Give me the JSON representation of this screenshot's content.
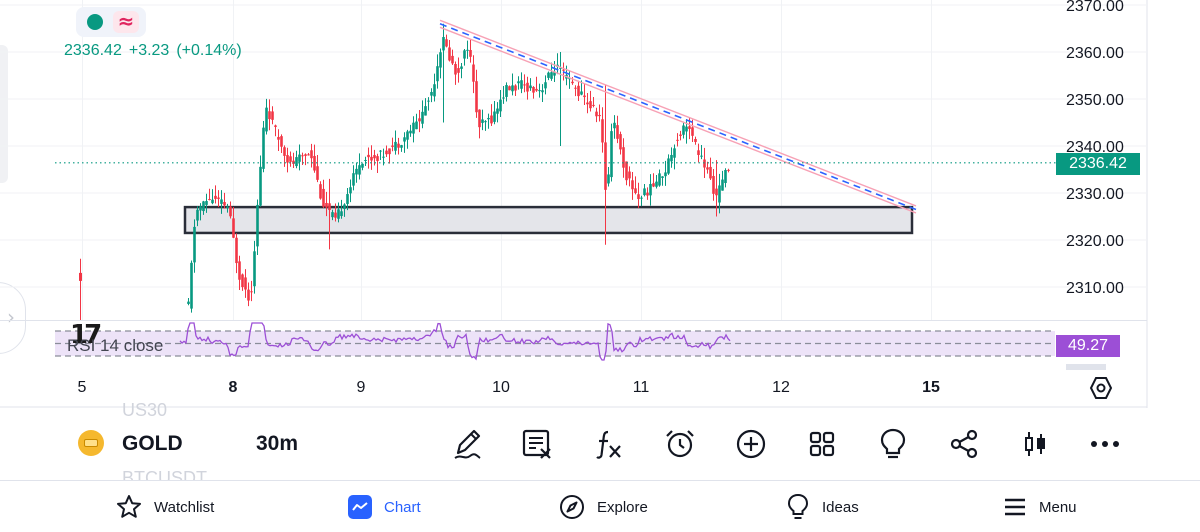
{
  "header": {
    "last_price": "2336.42",
    "change": "+3.23",
    "change_pct": "(+0.14%)"
  },
  "chart": {
    "price_axis_labels": [
      "2370.00",
      "2360.00",
      "2350.00",
      "2340.00",
      "2330.00",
      "2320.00",
      "2310.00"
    ],
    "time_axis_labels": [
      "5",
      "8",
      "9",
      "10",
      "11",
      "12",
      "15"
    ],
    "bold_time_labels": [
      "8",
      "15"
    ],
    "current_price_badge": "2336.42",
    "rsi_label": "RSI 14 close",
    "rsi_value": "49.27",
    "logo_text": "17",
    "colors": {
      "up": "#089981",
      "down": "#f23645",
      "trendline": "#f7a1b5",
      "trendline_dash": "#2962ff",
      "zone_border": "#2a2e39",
      "zone_fill": "#e4e5ea",
      "rsi_line": "#9c4fd6",
      "rsi_band": "#ede3f8"
    }
  },
  "chart_data": {
    "type": "candlestick",
    "y_axis_range": [
      2303,
      2373
    ],
    "y_ticks": [
      2310,
      2320,
      2330,
      2340,
      2350,
      2360,
      2370
    ],
    "last_price": 2336.42,
    "trendline": {
      "from": {
        "x": "9",
        "y": 2366
      },
      "to": {
        "x": "15",
        "y": 2326.5
      }
    },
    "support_zone": {
      "low": 2321.5,
      "high": 2327
    },
    "rsi": {
      "period": 14,
      "source": "close",
      "value": 49.27,
      "bands": [
        70,
        50,
        30
      ]
    }
  },
  "info_bar": {
    "symbol": "GOLD",
    "timeframe": "30m",
    "ghost_symbol_above": "US30",
    "ghost_symbol_below": "BTCUSDT",
    "tool_icons": [
      "draw-icon",
      "indicator-template-icon",
      "indicators-icon",
      "alert-icon",
      "add-icon",
      "layouts-icon",
      "ideas-bulb-icon",
      "share-icon",
      "chart-type-icon",
      "more-icon"
    ]
  },
  "nav": {
    "watchlist": "Watchlist",
    "chart": "Chart",
    "explore": "Explore",
    "ideas": "Ideas",
    "menu": "Menu"
  }
}
